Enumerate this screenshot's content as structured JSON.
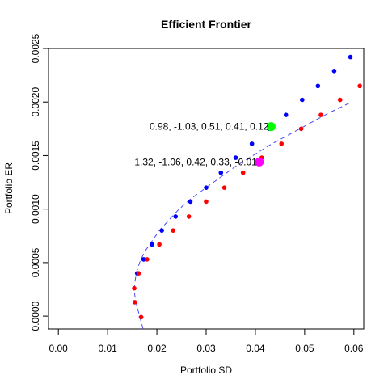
{
  "chart_data": {
    "type": "scatter",
    "title": "Efficient Frontier",
    "xlabel": "Portfolio SD",
    "ylabel": "Portfolio ER",
    "xlim": [
      -0.002,
      0.062
    ],
    "ylim": [
      -0.00012,
      0.0025
    ],
    "x_ticks": [
      0.0,
      0.01,
      0.02,
      0.03,
      0.04,
      0.05,
      0.06
    ],
    "x_tick_labels": [
      "0.00",
      "0.01",
      "0.02",
      "0.03",
      "0.04",
      "0.05",
      "0.06"
    ],
    "y_ticks": [
      0.0,
      0.0005,
      0.001,
      0.0015,
      0.002,
      0.0025
    ],
    "y_tick_labels": [
      "0.0000",
      "0.0005",
      "0.0010",
      "0.0015",
      "0.0020",
      "0.0025"
    ],
    "grid": false,
    "legend": "none",
    "frontier_line": {
      "color": "#4a4aff",
      "style": "dashed",
      "x": [
        0.0172,
        0.0165,
        0.0159,
        0.0155,
        0.0155,
        0.0158,
        0.0165,
        0.0175,
        0.019,
        0.0205,
        0.0225,
        0.0245,
        0.027,
        0.03,
        0.033,
        0.036,
        0.0395,
        0.043,
        0.047,
        0.051,
        0.055,
        0.0595
      ],
      "y": [
        -0.00012,
        0.0,
        0.0001,
        0.0002,
        0.0003,
        0.0004,
        0.0005,
        0.0006,
        0.0007,
        0.0008,
        0.0009,
        0.001,
        0.0011,
        0.0012,
        0.0013,
        0.0014,
        0.0015,
        0.0016,
        0.0017,
        0.0018,
        0.0019,
        0.002
      ]
    },
    "series": [
      {
        "color": "#0000ff",
        "x": [
          0.0168,
          0.016,
          0.0173,
          0.019,
          0.021,
          0.0238,
          0.0268,
          0.03,
          0.033,
          0.036,
          0.0393,
          0.0428,
          0.0462,
          0.0495,
          0.0527,
          0.056,
          0.0593
        ],
        "y": [
          -1e-05,
          0.0004,
          0.00053,
          0.00067,
          0.0008,
          0.00093,
          0.00107,
          0.0012,
          0.00134,
          0.00148,
          0.00161,
          0.00175,
          0.00188,
          0.00202,
          0.00215,
          0.00229,
          0.00242
        ]
      },
      {
        "color": "#ff0000",
        "x": [
          0.0168,
          0.0155,
          0.0154,
          0.0163,
          0.018,
          0.0205,
          0.0233,
          0.0265,
          0.03,
          0.0337,
          0.0375,
          0.0413,
          0.0453,
          0.0493,
          0.0533,
          0.0572,
          0.0612
        ],
        "y": [
          -1e-05,
          0.00013,
          0.00026,
          0.0004,
          0.00053,
          0.00067,
          0.0008,
          0.00093,
          0.00107,
          0.0012,
          0.00134,
          0.00148,
          0.00161,
          0.00175,
          0.00188,
          0.00202,
          0.00215
        ]
      }
    ],
    "highlights": [
      {
        "color": "#00ff00",
        "x": 0.0432,
        "y": 0.00177,
        "label": "0.98, -1.03, 0.51, 0.41, 0.12"
      },
      {
        "color": "#ff00ff",
        "x": 0.0408,
        "y": 0.00144,
        "label": "1.32, -1.06, 0.42, 0.33, -0.01"
      }
    ]
  }
}
